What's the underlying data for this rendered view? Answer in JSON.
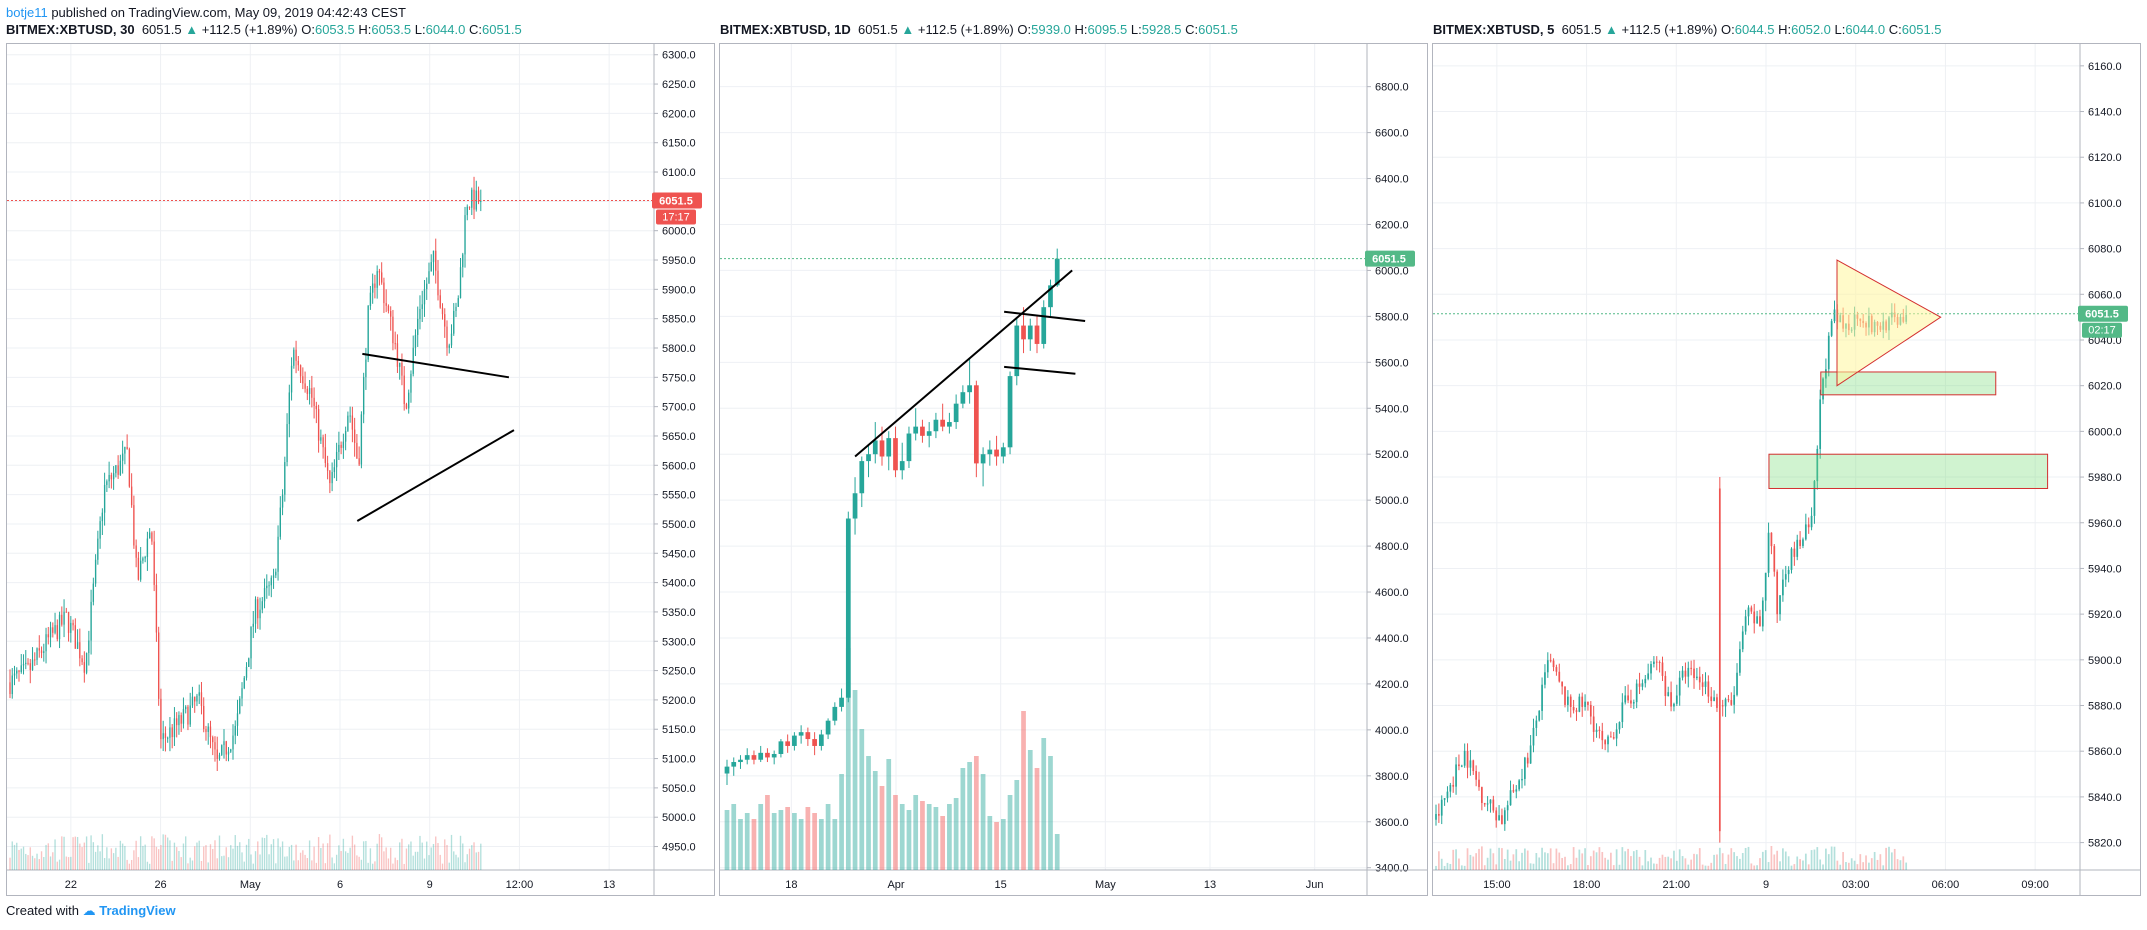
{
  "header": {
    "author": "botje11",
    "published_text": "published on TradingView.com, May 09, 2019 04:42:43 CEST"
  },
  "footer": {
    "created_with": "Created with",
    "brand": "TradingView"
  },
  "colors": {
    "up": "#26a69a",
    "down": "#ef5350",
    "grid": "#eef0f4",
    "axis": "#b2b5be",
    "price_red": "#ef5350",
    "price_green": "#53b987"
  },
  "chart_data": [
    {
      "type": "candlestick",
      "symbol": "BITMEX:XBTUSD",
      "interval": "30",
      "last": "6051.5",
      "change": "+112.5 (+1.89%)",
      "O": "6053.5",
      "H": "6053.5",
      "L": "6044.0",
      "C": "6051.5",
      "ylim": [
        4910,
        6320
      ],
      "y_ticks": [
        "6300.0",
        "6250.0",
        "6200.0",
        "6150.0",
        "6100.0",
        "6050.0",
        "6000.0",
        "5950.0",
        "5900.0",
        "5850.0",
        "5800.0",
        "5750.0",
        "5700.0",
        "5650.0",
        "5600.0",
        "5550.0",
        "5500.0",
        "5450.0",
        "5400.0",
        "5350.0",
        "5300.0",
        "5250.0",
        "5200.0",
        "5150.0",
        "5100.0",
        "5050.0",
        "5000.0",
        "4950.0"
      ],
      "x_ticks": [
        "22",
        "26",
        "May",
        "6",
        "9",
        "12:00",
        "13"
      ],
      "price_label": "6051.5",
      "countdown": "17:17",
      "price_tag_color": "#ef5350",
      "path": [
        [
          0,
          5230
        ],
        [
          0.04,
          5250
        ],
        [
          0.08,
          5300
        ],
        [
          0.12,
          5340
        ],
        [
          0.16,
          5260
        ],
        [
          0.2,
          5560
        ],
        [
          0.25,
          5620
        ],
        [
          0.27,
          5400
        ],
        [
          0.3,
          5500
        ],
        [
          0.32,
          5130
        ],
        [
          0.36,
          5160
        ],
        [
          0.4,
          5200
        ],
        [
          0.44,
          5090
        ],
        [
          0.48,
          5150
        ],
        [
          0.52,
          5350
        ],
        [
          0.56,
          5400
        ],
        [
          0.58,
          5560
        ],
        [
          0.6,
          5800
        ],
        [
          0.64,
          5720
        ],
        [
          0.68,
          5560
        ],
        [
          0.72,
          5700
        ],
        [
          0.74,
          5600
        ],
        [
          0.76,
          5850
        ],
        [
          0.78,
          5940
        ],
        [
          0.82,
          5800
        ],
        [
          0.84,
          5700
        ],
        [
          0.87,
          5870
        ],
        [
          0.9,
          5950
        ],
        [
          0.93,
          5810
        ],
        [
          0.95,
          5870
        ],
        [
          0.97,
          6051
        ]
      ],
      "n_candles": 210,
      "trendlines": [
        {
          "from": [
            0.705,
            5790
          ],
          "to": [
            0.995,
            5750
          ]
        },
        {
          "from": [
            0.695,
            5505
          ],
          "to": [
            1.005,
            5660
          ]
        }
      ]
    },
    {
      "type": "candlestick",
      "symbol": "BITMEX:XBTUSD",
      "interval": "1D",
      "last": "6051.5",
      "change": "+112.5 (+1.89%)",
      "O": "5939.0",
      "H": "6095.5",
      "L": "5928.5",
      "C": "6051.5",
      "ylim": [
        3390,
        6990
      ],
      "y_ticks": [
        "6800.0",
        "6600.0",
        "6400.0",
        "6200.0",
        "6000.0",
        "5800.0",
        "5600.0",
        "5400.0",
        "5200.0",
        "5000.0",
        "4800.0",
        "4600.0",
        "4400.0",
        "4200.0",
        "4000.0",
        "3800.0",
        "3600.0",
        "3400.0"
      ],
      "x_ticks": [
        "18",
        "Apr",
        "15",
        "May",
        "13",
        "Jun"
      ],
      "price_label": "6051.5",
      "price_tag_color": "#53b987",
      "candles": [
        [
          3810,
          3870,
          3760,
          3840
        ],
        [
          3840,
          3880,
          3800,
          3860
        ],
        [
          3860,
          3890,
          3830,
          3870
        ],
        [
          3870,
          3920,
          3850,
          3890
        ],
        [
          3890,
          3910,
          3850,
          3870
        ],
        [
          3870,
          3930,
          3860,
          3900
        ],
        [
          3900,
          3920,
          3860,
          3880
        ],
        [
          3880,
          3910,
          3850,
          3895
        ],
        [
          3895,
          3960,
          3880,
          3950
        ],
        [
          3950,
          3980,
          3900,
          3930
        ],
        [
          3930,
          3990,
          3910,
          3975
        ],
        [
          3975,
          4020,
          3940,
          3990
        ],
        [
          3990,
          4010,
          3930,
          3960
        ],
        [
          3960,
          3990,
          3890,
          3930
        ],
        [
          3930,
          4000,
          3910,
          3980
        ],
        [
          3980,
          4050,
          3960,
          4040
        ],
        [
          4040,
          4120,
          4020,
          4100
        ],
        [
          4100,
          4180,
          4080,
          4140
        ],
        [
          4140,
          4950,
          4120,
          4920
        ],
        [
          4920,
          5100,
          4850,
          5030
        ],
        [
          5030,
          5190,
          4970,
          5170
        ],
        [
          5170,
          5240,
          5100,
          5200
        ],
        [
          5200,
          5340,
          5160,
          5260
        ],
        [
          5260,
          5320,
          5150,
          5190
        ],
        [
          5190,
          5300,
          5130,
          5270
        ],
        [
          5270,
          5320,
          5100,
          5130
        ],
        [
          5130,
          5250,
          5090,
          5170
        ],
        [
          5170,
          5320,
          5140,
          5290
        ],
        [
          5290,
          5400,
          5260,
          5320
        ],
        [
          5320,
          5350,
          5250,
          5280
        ],
        [
          5280,
          5340,
          5230,
          5300
        ],
        [
          5300,
          5380,
          5270,
          5350
        ],
        [
          5350,
          5420,
          5300,
          5320
        ],
        [
          5320,
          5380,
          5290,
          5340
        ],
        [
          5340,
          5460,
          5310,
          5420
        ],
        [
          5420,
          5500,
          5400,
          5470
        ],
        [
          5470,
          5620,
          5420,
          5500
        ],
        [
          5500,
          5520,
          5100,
          5160
        ],
        [
          5160,
          5230,
          5060,
          5200
        ],
        [
          5200,
          5260,
          5150,
          5220
        ],
        [
          5220,
          5280,
          5150,
          5190
        ],
        [
          5190,
          5250,
          5160,
          5230
        ],
        [
          5230,
          5560,
          5200,
          5540
        ],
        [
          5540,
          5790,
          5500,
          5760
        ],
        [
          5760,
          5840,
          5640,
          5700
        ],
        [
          5700,
          5790,
          5650,
          5760
        ],
        [
          5760,
          5800,
          5640,
          5680
        ],
        [
          5680,
          5870,
          5660,
          5840
        ],
        [
          5840,
          5960,
          5800,
          5935
        ],
        [
          5935,
          6095,
          5928,
          6051
        ]
      ],
      "volumes": [
        0.2,
        0.22,
        0.17,
        0.19,
        0.17,
        0.22,
        0.25,
        0.19,
        0.2,
        0.21,
        0.19,
        0.17,
        0.21,
        0.19,
        0.17,
        0.22,
        0.17,
        0.32,
        0.74,
        0.6,
        0.47,
        0.38,
        0.33,
        0.28,
        0.37,
        0.25,
        0.22,
        0.2,
        0.25,
        0.23,
        0.22,
        0.21,
        0.18,
        0.22,
        0.24,
        0.34,
        0.36,
        0.38,
        0.32,
        0.18,
        0.16,
        0.17,
        0.25,
        0.3,
        0.53,
        0.4,
        0.34,
        0.44,
        0.38,
        0.12
      ],
      "trendlines": [
        {
          "from": [
            0.21,
            5190
          ],
          "to": [
            0.545,
            6000
          ]
        },
        {
          "from": [
            0.44,
            5820
          ],
          "to": [
            0.565,
            5780
          ]
        },
        {
          "from": [
            0.44,
            5580
          ],
          "to": [
            0.55,
            5550
          ]
        }
      ]
    },
    {
      "type": "candlestick",
      "symbol": "BITMEX:XBTUSD",
      "interval": "5",
      "last": "6051.5",
      "change": "+112.5 (+1.89%)",
      "O": "6044.5",
      "H": "6052.0",
      "L": "6044.0",
      "C": "6051.5",
      "ylim": [
        5808,
        6170
      ],
      "y_ticks": [
        "6160.0",
        "6140.0",
        "6120.0",
        "6100.0",
        "6080.0",
        "6060.0",
        "6040.0",
        "6020.0",
        "6000.0",
        "5980.0",
        "5960.0",
        "5940.0",
        "5920.0",
        "5900.0",
        "5880.0",
        "5860.0",
        "5840.0",
        "5820.0"
      ],
      "x_ticks": [
        "15:00",
        "18:00",
        "21:00",
        "9",
        "03:00",
        "06:00",
        "09:00"
      ],
      "price_label": "6051.5",
      "countdown": "02:17",
      "price_tag_color": "#53b987",
      "path": [
        [
          0,
          5830
        ],
        [
          0.06,
          5860
        ],
        [
          0.1,
          5840
        ],
        [
          0.14,
          5830
        ],
        [
          0.2,
          5860
        ],
        [
          0.24,
          5900
        ],
        [
          0.28,
          5880
        ],
        [
          0.32,
          5880
        ],
        [
          0.36,
          5860
        ],
        [
          0.4,
          5880
        ],
        [
          0.44,
          5890
        ],
        [
          0.47,
          5900
        ],
        [
          0.5,
          5880
        ],
        [
          0.53,
          5895
        ],
        [
          0.57,
          5890
        ],
        [
          0.6,
          5880
        ],
        [
          0.63,
          5880
        ],
        [
          0.66,
          5920
        ],
        [
          0.69,
          5915
        ],
        [
          0.71,
          5960
        ],
        [
          0.725,
          5920
        ],
        [
          0.74,
          5940
        ],
        [
          0.77,
          5950
        ],
        [
          0.8,
          5960
        ],
        [
          0.82,
          6020
        ],
        [
          0.845,
          6050
        ],
        [
          0.87,
          6045
        ],
        [
          0.9,
          6052
        ],
        [
          0.93,
          6045
        ],
        [
          1.0,
          6051
        ]
      ],
      "n_candles": 165,
      "spike": {
        "index": 99,
        "low": 5820,
        "high": 5980
      },
      "triangle": [
        [
          0.625,
          6075
        ],
        [
          0.785,
          6050
        ],
        [
          0.625,
          6020
        ]
      ],
      "zones": [
        {
          "x0": 0.6,
          "x1": 0.87,
          "y0": 6016,
          "y1": 6026
        },
        {
          "x0": 0.52,
          "x1": 0.95,
          "y0": 5975,
          "y1": 5990
        }
      ]
    }
  ]
}
